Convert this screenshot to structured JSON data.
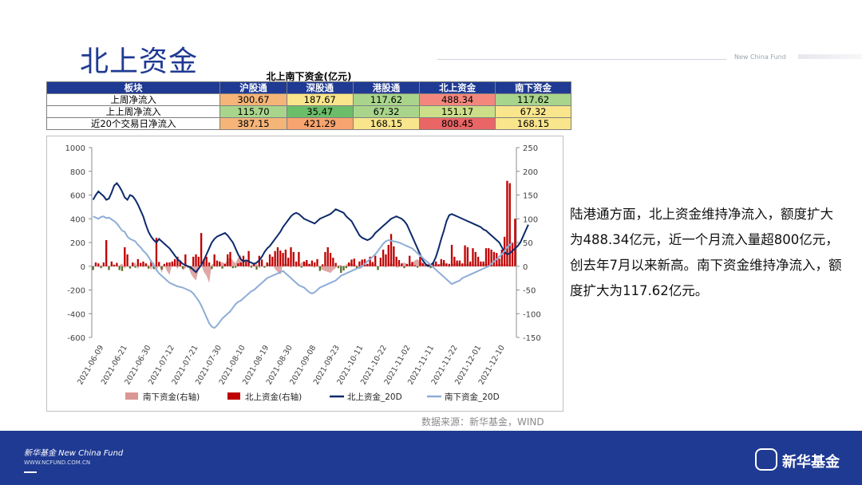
{
  "page": {
    "title": "北上资金",
    "header_brand": "New China Fund",
    "source": "数据来源：新华基金，WIND",
    "commentary": "陆港通方面，北上资金维持净流入，额度扩大为488.34亿元，近一个月流入量超800亿元，创去年7月以来新高。南下资金维持净流入，额度扩大为117.62亿元。",
    "footer_brand": "新华基金 New China Fund",
    "footer_url": "WWW.NCFUND.COM.CN",
    "logo_text": "新华基金"
  },
  "table": {
    "title": "北上南下资金(亿元)",
    "headers": [
      "板块",
      "沪股通",
      "深股通",
      "港股通",
      "北上资金",
      "南下资金"
    ],
    "rows": [
      {
        "label": "上周净流入",
        "values": [
          "300.67",
          "187.67",
          "117.62",
          "488.34",
          "117.62"
        ],
        "colors": [
          "#f5b478",
          "#f8e58c",
          "#a8d58b",
          "#f4877d",
          "#a8d58b"
        ]
      },
      {
        "label": "上上周净流入",
        "values": [
          "115.70",
          "35.47",
          "67.32",
          "151.17",
          "67.32"
        ],
        "colors": [
          "#a8d58b",
          "#6cbd6a",
          "#a8d58b",
          "#ccdf88",
          "#f8e58c"
        ]
      },
      {
        "label": "近20个交易日净流入",
        "values": [
          "387.15",
          "421.29",
          "168.15",
          "808.45",
          "168.15"
        ],
        "colors": [
          "#f5b478",
          "#f7a470",
          "#f8e58c",
          "#ea6565",
          "#f8e58c"
        ]
      }
    ]
  },
  "chart_data": {
    "type": "bar",
    "left_axis": {
      "min": -600,
      "max": 1000,
      "ticks": [
        -600,
        -400,
        -200,
        0,
        200,
        400,
        600,
        800,
        1000
      ]
    },
    "right_axis": {
      "min": -150,
      "max": 250,
      "ticks": [
        -150,
        -100,
        -50,
        0,
        50,
        100,
        150,
        200,
        250
      ]
    },
    "x_tick_labels": [
      "2021-06-09",
      "2021-06-21",
      "2021-06-30",
      "2021-07-12",
      "2021-07-21",
      "2021-07-30",
      "2021-08-10",
      "2021-08-19",
      "2021-08-30",
      "2021-09-08",
      "2021-09-23",
      "2021-10-11",
      "2021-10-22",
      "2021-11-02",
      "2021-11-11",
      "2021-11-22",
      "2021-12-01",
      "2021-12-10"
    ],
    "legend_position": "bottom",
    "series": [
      {
        "name": "北上资金(右轴)",
        "type": "bar",
        "axis": "right",
        "color": "#c00000",
        "values": [
          -8,
          8,
          6,
          -4,
          8,
          55,
          -8,
          10,
          3,
          7,
          -8,
          -10,
          40,
          25,
          -5,
          8,
          -3,
          15,
          7,
          10,
          6,
          -5,
          12,
          -6,
          60,
          9,
          -7,
          5,
          8,
          8,
          10,
          15,
          20,
          12,
          -5,
          25,
          -3,
          -6,
          20,
          25,
          20,
          70,
          15,
          20,
          8,
          -6,
          25,
          12,
          10,
          -5,
          5,
          25,
          30,
          -4,
          -3,
          6,
          8,
          22,
          10,
          32,
          -3,
          6,
          -7,
          22,
          14,
          -3,
          8,
          25,
          20,
          32,
          40,
          33,
          28,
          35,
          18,
          40,
          30,
          10,
          30,
          -3,
          10,
          13,
          5,
          12,
          8,
          15,
          -10,
          4,
          30,
          40,
          28,
          18,
          7,
          -4,
          -14,
          -9,
          -4,
          8,
          14,
          16,
          -5,
          10,
          14,
          15,
          5,
          20,
          9,
          22,
          -8,
          18,
          35,
          25,
          45,
          68,
          42,
          20,
          13,
          6,
          -4,
          5,
          22,
          9,
          2,
          -3,
          20,
          6,
          2,
          4,
          -4,
          7,
          10,
          4,
          15,
          13,
          6,
          5,
          45,
          20,
          12,
          12,
          6,
          44,
          40,
          10,
          38,
          30,
          20,
          10,
          10,
          38,
          38,
          35,
          30,
          28,
          16,
          35,
          62,
          180,
          175,
          50,
          100
        ]
      },
      {
        "name": "南下资金(右轴)",
        "type": "area",
        "axis": "right",
        "color": "#d99694",
        "values": [
          -2,
          2,
          -3,
          3,
          0,
          2,
          -4,
          3,
          4,
          -2,
          2,
          6,
          -5,
          3,
          -2,
          4,
          8,
          -6,
          5,
          -3,
          4,
          3,
          -8,
          10,
          -12,
          5,
          -14,
          3,
          -10,
          -18,
          6,
          4,
          -6,
          8,
          -9,
          -4,
          3,
          -15,
          -24,
          -30,
          -8,
          3,
          -12,
          -20,
          -35,
          4,
          6,
          -3,
          4,
          9,
          5,
          14,
          20,
          12,
          6,
          18,
          24,
          -4,
          8,
          -3,
          4,
          3,
          6,
          -5,
          2,
          -3,
          5,
          4,
          3,
          -6,
          -12,
          -18,
          4,
          6,
          3,
          -4,
          5,
          -3,
          2,
          8,
          10,
          5,
          4,
          2,
          -4,
          3,
          -5,
          -8,
          -10,
          -12,
          -14,
          -8,
          -4,
          2,
          3,
          -3,
          4,
          6,
          5,
          3,
          2,
          -6,
          -3,
          4,
          2,
          5,
          6,
          3,
          -2,
          4,
          3,
          -4,
          5,
          6,
          3,
          -3,
          -2,
          5,
          8,
          4,
          3,
          6,
          12,
          15,
          10,
          8,
          3,
          4,
          -3,
          2,
          5,
          4,
          6,
          8,
          3,
          -3,
          4,
          6,
          7,
          5,
          3,
          4,
          6,
          5,
          3,
          4,
          2,
          3,
          5,
          4,
          6,
          3,
          2,
          4,
          5,
          3,
          6,
          4,
          2,
          3
        ]
      },
      {
        "name": "北上资金_20D",
        "type": "line",
        "axis": "left",
        "color": "#0d2a6b",
        "values": [
          560,
          600,
          630,
          610,
          590,
          560,
          570,
          620,
          680,
          700,
          670,
          630,
          580,
          560,
          600,
          590,
          560,
          520,
          470,
          420,
          350,
          290,
          250,
          220,
          200,
          230,
          210,
          190,
          170,
          150,
          120,
          90,
          60,
          40,
          20,
          10,
          0,
          -10,
          -30,
          -50,
          -20,
          10,
          50,
          100,
          150,
          200,
          230,
          250,
          260,
          270,
          280,
          260,
          230,
          200,
          150,
          100,
          60,
          40,
          50,
          40,
          30,
          20,
          30,
          50,
          80,
          120,
          150,
          170,
          200,
          230,
          260,
          290,
          330,
          360,
          390,
          420,
          440,
          450,
          440,
          420,
          400,
          390,
          380,
          370,
          360,
          380,
          400,
          410,
          420,
          430,
          440,
          460,
          480,
          470,
          460,
          450,
          420,
          400,
          380,
          340,
          300,
          260,
          240,
          230,
          220,
          230,
          250,
          280,
          300,
          320,
          340,
          360,
          380,
          400,
          410,
          420,
          410,
          400,
          380,
          350,
          300,
          250,
          200,
          150,
          100,
          50,
          20,
          0,
          10,
          30,
          80,
          150,
          230,
          300,
          380,
          430,
          440,
          430,
          420,
          410,
          400,
          390,
          380,
          370,
          360,
          350,
          340,
          330,
          310,
          300,
          280,
          260,
          240,
          220,
          200,
          160,
          120,
          100,
          110,
          130,
          150,
          170,
          200,
          250,
          300,
          350
        ]
      },
      {
        "name": "南下资金_20D",
        "type": "line",
        "axis": "left",
        "color": "#8eadd6",
        "values": [
          420,
          410,
          400,
          415,
          420,
          405,
          410,
          395,
          380,
          360,
          330,
          300,
          290,
          250,
          230,
          220,
          210,
          180,
          160,
          130,
          110,
          80,
          40,
          10,
          -30,
          -60,
          -80,
          -100,
          -120,
          -140,
          -150,
          -160,
          -170,
          -175,
          -180,
          -190,
          -200,
          -210,
          -230,
          -260,
          -290,
          -330,
          -380,
          -430,
          -480,
          -510,
          -520,
          -500,
          -470,
          -440,
          -420,
          -400,
          -380,
          -350,
          -320,
          -300,
          -290,
          -270,
          -250,
          -230,
          -210,
          -200,
          -180,
          -160,
          -140,
          -120,
          -100,
          -90,
          -80,
          -70,
          -60,
          -50,
          -40,
          -60,
          -80,
          -100,
          -120,
          -140,
          -160,
          -170,
          -180,
          -200,
          -220,
          -230,
          -220,
          -200,
          -180,
          -170,
          -160,
          -150,
          -140,
          -130,
          -120,
          -100,
          -80,
          -70,
          -60,
          -50,
          -40,
          -30,
          -20,
          -10,
          0,
          20,
          40,
          60,
          80,
          100,
          130,
          160,
          190,
          210,
          220,
          215,
          210,
          205,
          200,
          190,
          180,
          170,
          160,
          150,
          130,
          110,
          90,
          70,
          50,
          30,
          10,
          -10,
          -30,
          -50,
          -70,
          -90,
          -110,
          -130,
          -150,
          -140,
          -130,
          -120,
          -100,
          -90,
          -80,
          -70,
          -60,
          -50,
          -40,
          -30,
          -20,
          -10,
          0,
          20,
          40,
          60,
          80,
          100,
          130,
          160,
          180,
          200
        ]
      }
    ]
  }
}
